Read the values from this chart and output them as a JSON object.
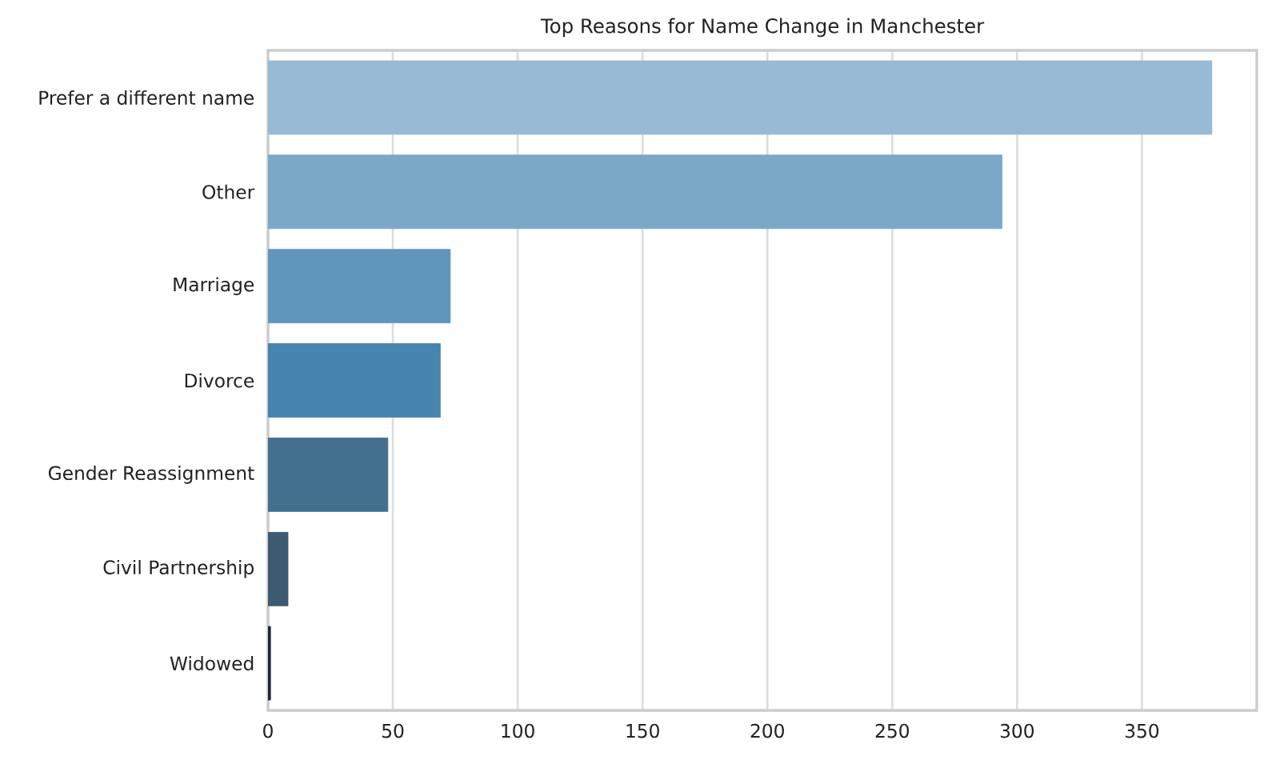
{
  "chart_data": {
    "type": "bar",
    "orientation": "horizontal",
    "title": "Top Reasons for Name Change in Manchester",
    "categories": [
      "Prefer a different name",
      "Other",
      "Marriage",
      "Divorce",
      "Gender Reassignment",
      "Civil Partnership",
      "Widowed"
    ],
    "values": [
      378,
      294,
      73,
      69,
      48,
      8,
      1
    ],
    "colors": [
      "#99bad4",
      "#7ba8c8",
      "#6096bb",
      "#4884b0",
      "#43708f",
      "#3c5a71",
      "#1c2638"
    ],
    "xlim": [
      0,
      396
    ],
    "xticks": [
      0,
      50,
      100,
      150,
      200,
      250,
      300,
      350
    ],
    "grid": "x"
  }
}
